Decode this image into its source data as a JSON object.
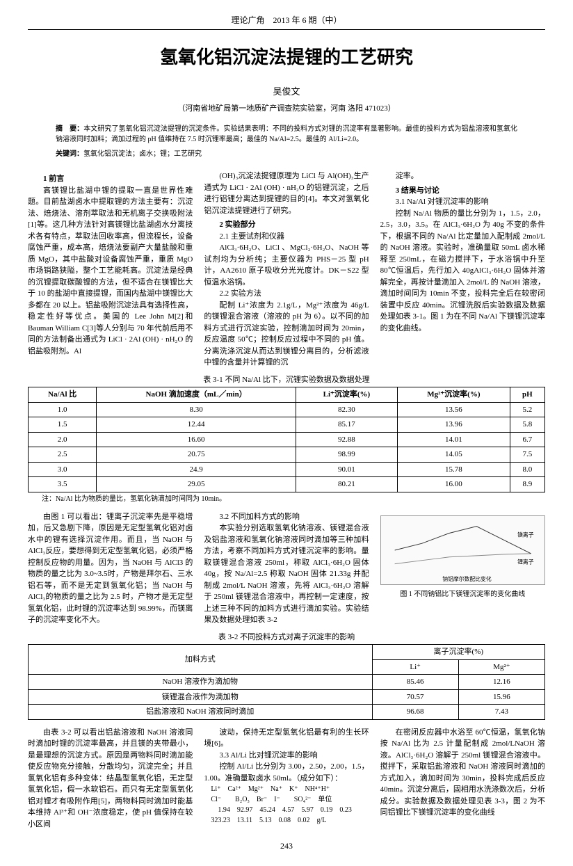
{
  "header": {
    "journal": "理论广角　2013 年 6 期（中）"
  },
  "title": "氢氧化铝沉淀法提锂的工艺研究",
  "author": "吴俊文",
  "affiliation": "（河南省地矿局第一地质矿产调查院实验室，河南 洛阳 471023）",
  "abstract": {
    "label": "摘　要：",
    "text": "本文研究了氢氧化铝沉淀法提锂的沉淀条件。实验结果表明：不同的投料方式对锂的沉淀率有显著影响。最佳的投料方式为铝盐溶液和氢氧化钠溶液同时加料；滴加过程的 pH 值维持在 7.5 时沉锂率最高；最佳的 Na/Al=2.5。最佳的 Al/Li=2.0。"
  },
  "keywords": {
    "label": "关键词：",
    "text": "氢氧化铝沉淀法；卤水；锂；工艺研究"
  },
  "col1": {
    "s1_title": "1 前言",
    "s1_p1": "高镁锂比盐湖中锂的提取一直是世界性难题。目前盐湖卤水中提取锂的方法主要有：沉淀法、焙烧法、溶剂萃取法和无机离子交换吸附法[1]等。这几种方法针对高镁锂比盐湖卤水分离技术各有特点，萃取法回收率高，但流程长，设备腐蚀严重，成本高，焙烧法要副产大量盐酸和重质 MgO，其中盐酸对设备腐蚀严重，重质 MgO 市场销路狭隘，整个工艺能耗高。沉淀法是经典的沉锂提取碳酸锂的方法，但不适合在镁锂比大于 10 的盐湖中直接提锂，而国内盐湖中镁锂比大多都在 20 以上。铝盐吸附沉淀法具有选择性高，稳定性好等优点。美国的 Lee John M[2]和 Bauman William C[3]等人分别与 70 年代前后用不同的方法制备出通式为 LiCl · 2Al (OH) · nH₂O 的铝盐吸附剂。Al"
  },
  "col2": {
    "p1": "(OH)₃沉淀法提锂原理为 LiCl 与 Al(OH)₃生产通式为 LiCl · 2Al (OH) · nH₂O 的铝锂沉淀，之后进行铝锂分离达到提锂的目的[4]。本文对氢氧化铝沉淀法提锂进行了研究。",
    "s2_title": "2 实验部分",
    "s21_title": "2.1 主要试剂和仪器",
    "s21_p": "AlCl₃·6H₂O、LiCl 、MgCl₂·6H₂O、NaOH 等试剂均为分析纯；主要仪器为 PHS－25 型 pH 计，AA2610 原子吸收分光光度计。DK－S22 型恒温水浴锅。",
    "s22_title": "2.2 实验方法",
    "s22_p": "配制 Li⁺浓度为 2.1g/L，Mg²⁺浓度为 46g/L 的镁锂混合溶液（溶液的 pH 为 6）。以不同的加料方式进行沉淀实验，控制滴加时间为 20min，反应温度 50℃；控制反应过程中不同的 pH 值。分离洗涤沉淀从而达到镁锂分离目的，分析滤液中锂的含量并计算锂的沉"
  },
  "col3": {
    "p1": "淀率。",
    "s3_title": "3 结果与讨论",
    "s31_title": "3.1 Na/Al 对锂沉淀率的影响",
    "s31_p": "控制 Na/Al 物质的量比分别为 1，1.5，2.0，2.5，3.0，3.5。在 AlCl₃·6H₂O 为 40g 不变的条件下，根据不同的 Na/Al 比定量加入配制成 2mol/L 的 NaOH 溶液。实验时，准确量取 50mL 卤水稀释至 250mL，在磁力搅拌下，于水浴锅中升至 80℃恒温后，先行加入 40gAlCl₃·6H₂O 固体并溶解完全，再按计量滴加入 2mol/L 的 NaOH 溶液，滴加时间同为 10min 不变，投料完全后在较密闭装置中反应 40min。沉锂洗脱后实验数据及数据处理如表 3-1。图 1 为在不同 Na/Al 下镁锂沉淀率的变化曲线。"
  },
  "table31": {
    "caption": "表 3-1 不同 Na/Al 比下，沉锂实验数据及数据处理",
    "headers": [
      "Na/Al 比",
      "NaOH 滴加速度（mL／min）",
      "Li⁺沉淀率(%)",
      "Mg²⁺沉淀率(%)",
      "pH"
    ],
    "rows": [
      [
        "1.0",
        "8.30",
        "82.30",
        "13.56",
        "5.2"
      ],
      [
        "1.5",
        "12.44",
        "85.17",
        "13.96",
        "5.8"
      ],
      [
        "2.0",
        "16.60",
        "92.88",
        "14.01",
        "6.7"
      ],
      [
        "2.5",
        "20.75",
        "98.99",
        "14.05",
        "7.5"
      ],
      [
        "3.0",
        "24.9",
        "90.01",
        "15.78",
        "8.0"
      ],
      [
        "3.5",
        "29.05",
        "80.21",
        "16.00",
        "8.9"
      ]
    ],
    "note": "注：Na/Al 比为物质的量比，氢氧化钠滴加时间同为 10min。"
  },
  "col1b": {
    "p1": "由图 1 可以看出：锂离子沉淀率先是平稳增加，后又急剧下降，原因是无定型氢氧化铝对卤水中的锂有选择沉淀作用。而且，当 NaOH 与 AlCl₃反应，要想得到无定型氢氧化铝，必须严格控制反应物的用量。因为，当 NaOH 与 AlCl3 的物质的量之比为 3.0~3.5时，产物是拜尔石、三水铝石等，而不是无定到氢氧化铝；当 NaOH 与 AlCl₃的物质的量之比为 2.5 时，产物才是无定型氢氧化铝，此时锂的沉淀率达到 98.99%，而镁离子的沉淀率变化不大。"
  },
  "col2b": {
    "s32_title": "3.2 不同加料方式的影响",
    "s32_p": "本实验分别选取氢氧化钠溶液、镁锂混合液及铝盐溶液和氢氧化钠溶液同时滴加等三种加料方法，考察不同加料方式对锂沉淀率的影响。量取镁锂混合溶液 250ml，称取 AlCl₃·6H₂O 固体 40g，按 Na/Al=2.5 称取 NaOH 固体 21.33g 并配制成 2mol/L NaOH 溶液，先将 AlCl₃·6H₂O 溶解于 250ml 镁锂混合溶液中，再控制一定速度，按上述三种不同的加料方式进行滴加实验。实验结果及数据处理如表 3-2"
  },
  "col3b": {
    "fig1_caption": "图 1 不同钠铝比下镁锂沉淀率的变化曲线",
    "fig1_xlabel": "钠铝摩尔数配比变化",
    "fig1_series1": "镁离子",
    "fig1_series2": "锂离子"
  },
  "table32": {
    "caption": "表 3-2 不同投料方式对离子沉淀率的影响",
    "h_method": "加料方式",
    "h_rate": "离子沉淀率(%)",
    "h_li": "Li⁺",
    "h_mg": "Mg²⁺",
    "rows": [
      [
        "NaOH 溶液作为滴加物",
        "85.46",
        "12.16"
      ],
      [
        "镁锂混合液作为滴加物",
        "70.57",
        "15.96"
      ],
      [
        "铝盐溶液和 NaOH 溶液同时滴加",
        "96.68",
        "7.43"
      ]
    ]
  },
  "col1c": {
    "p1": "由表 3-2 可以看出铝盐溶液和 NaOH 溶液同时滴加时锂的沉淀率最高，并且镁的夹带最小，是最理想的沉淀方式。原因是两物料同时滴加能使反应物充分接触，分散均匀，沉淀完全；并且氢氧化铝有多种变体：结晶型氢氧化铝，无定型氢氧化铝，假一水软铝石。而只有无定型氢氧化铝对锂才有吸附作用[5]，两物料同时滴加时能基本维持 Al³⁺和 OH⁻浓度稳定，使 pH 值保持在较小区间"
  },
  "col2c": {
    "p1": "波动，保持无定型氢氧化铝最有利的生长环境[6]。",
    "s33_title": "3.3 Al/Li 比对锂沉淀率的影响",
    "s33_p": "控制 Al/Li 比分别为 3.00，2.50，2.00，1.5，1.00。准确量取卤水 50ml。（成分如下）：",
    "ions_h": "Li⁺　Ca²⁺　Mg²⁺　Na⁺　K⁺　NH⁴⁺H⁺",
    "ions_v1": "Cl⁻　　B₂O₃　Br⁻　I⁻　　SO₄²⁻　单位",
    "data_r1": "　1.94　92.97　45.24　4.57　5.97　0.19　0.23",
    "data_r2": "323.23　13.11　5.13　0.08　0.02　g/L"
  },
  "col3c": {
    "p1": "在密闭反应器中水浴至 60℃恒温，氢氧化钠按 Na/Al 比为 2.5 计量配制成 2mol/LNaOH 溶液。AlCl₃·6H₂O 溶解于 250ml 镁锂混合溶液中。搅拌下，采取铝盐溶液和 NaOH 溶液同时滴加的方式加入，滴加时间为 30min，投料完成后反应 40min。沉淀分离后，固相用水洗涤数次后，分析成分。实验数据及数据处理见表 3-3，图 2 为不同铝锂比下镁锂沉淀率的变化曲线"
  },
  "page_number": "243"
}
